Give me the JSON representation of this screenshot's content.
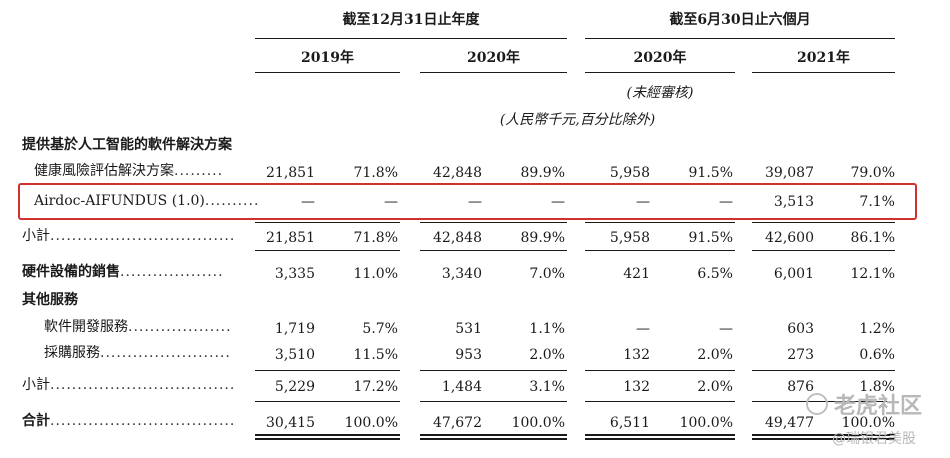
{
  "header": {
    "group1": "截至12月31日止年度",
    "group2": "截至6月30日止六個月",
    "year_2019": "2019年",
    "year_2020a": "2020年",
    "year_2020b": "2020年",
    "year_2021": "2021年",
    "unaudited": "(未經審核)",
    "units": "(人民幣千元,百分比除外)"
  },
  "rows": {
    "section_ai": "提供基於人工智能的軟件解決方案",
    "health": {
      "label": "健康風險評估解決方案",
      "dots": ".........",
      "values": [
        "21,851",
        "71.8%",
        "42,848",
        "89.9%",
        "5,958",
        "91.5%",
        "39,087",
        "79.0%"
      ]
    },
    "airdoc": {
      "label": "Airdoc-AIFUNDUS (1.0)",
      "dots": "..........",
      "values": [
        "—",
        "—",
        "—",
        "—",
        "—",
        "—",
        "3,513",
        "7.1%"
      ]
    },
    "subtotal1": {
      "label": "小計",
      "dots": "..................................",
      "values": [
        "21,851",
        "71.8%",
        "42,848",
        "89.9%",
        "5,958",
        "91.5%",
        "42,600",
        "86.1%"
      ]
    },
    "hardware": {
      "label": "硬件設備的銷售",
      "dots": "...................",
      "values": [
        "3,335",
        "11.0%",
        "3,340",
        "7.0%",
        "421",
        "6.5%",
        "6,001",
        "12.1%"
      ]
    },
    "section_other": "其他服務",
    "software_dev": {
      "label": "軟件開發服務",
      "dots": "...................",
      "values": [
        "1,719",
        "5.7%",
        "531",
        "1.1%",
        "—",
        "—",
        "603",
        "1.2%"
      ]
    },
    "procurement": {
      "label": "採購服務",
      "dots": "........................",
      "values": [
        "3,510",
        "11.5%",
        "953",
        "2.0%",
        "132",
        "2.0%",
        "273",
        "0.6%"
      ]
    },
    "subtotal2": {
      "label": "小計",
      "dots": "..................................",
      "values": [
        "5,229",
        "17.2%",
        "1,484",
        "3.1%",
        "132",
        "2.0%",
        "876",
        "1.8%"
      ]
    },
    "total": {
      "label": "合計",
      "dots": "..................................",
      "values": [
        "30,415",
        "100.0%",
        "47,672",
        "100.0%",
        "6,511",
        "100.0%",
        "49,477",
        "100.0%"
      ]
    }
  },
  "watermark": {
    "line1": "老虎社区",
    "line2": "@瑞银君美股"
  },
  "colors": {
    "highlight_box": "#d0312d",
    "text": "#1a1a1a",
    "watermark": "#b8b8b8"
  }
}
